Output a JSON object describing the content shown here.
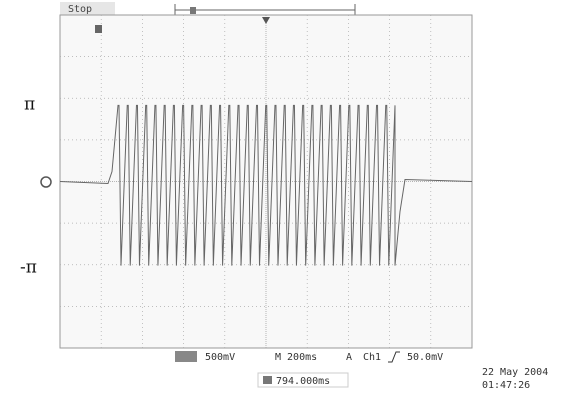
{
  "status": "Stop",
  "labels": {
    "pi": "π",
    "neg_pi": "-π"
  },
  "readout": {
    "ch_scale": "500mV",
    "timebase": "M 200ms",
    "trigger_mode": "A",
    "trigger_source": "Ch1",
    "trigger_level": "50.0mV",
    "position": "794.000ms"
  },
  "timestamp": {
    "date": "22 May 2004",
    "time": "01:47:26"
  }
}
